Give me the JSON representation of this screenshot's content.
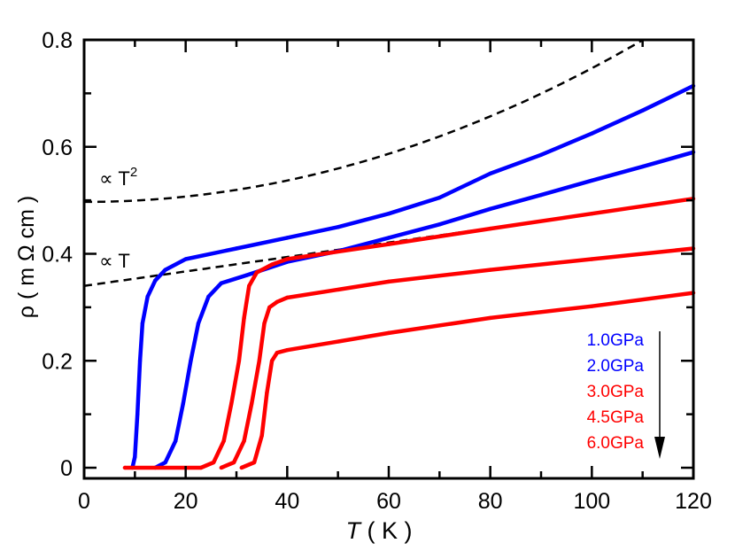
{
  "chart_data": {
    "type": "line",
    "xlabel": {
      "italic": "T",
      "rest": " ( K )"
    },
    "ylabel": "ρ ( m Ω cm )",
    "xlim": [
      0,
      120
    ],
    "ylim": [
      0,
      0.8
    ],
    "xticks": [
      0,
      20,
      40,
      60,
      80,
      100,
      120
    ],
    "yticks": [
      0,
      0.2,
      0.4,
      0.6,
      0.8
    ],
    "ytick_labels": [
      "0",
      "0.2",
      "0.4",
      "0.6",
      "0.8"
    ],
    "grid": false,
    "legend_placement": "bottom-right",
    "legend_arrow": "down",
    "colors": {
      "blue": "#0000ff",
      "red": "#ff0000",
      "fit": "#000000"
    },
    "series": [
      {
        "name": "1.0GPa",
        "color": "#0000ff",
        "points": [
          [
            9.5,
            0
          ],
          [
            10,
            0.02
          ],
          [
            10.5,
            0.1
          ],
          [
            11,
            0.2
          ],
          [
            11.5,
            0.27
          ],
          [
            12.5,
            0.32
          ],
          [
            14,
            0.35
          ],
          [
            16,
            0.37
          ],
          [
            20,
            0.39
          ],
          [
            30,
            0.41
          ],
          [
            40,
            0.43
          ],
          [
            50,
            0.45
          ],
          [
            60,
            0.475
          ],
          [
            70,
            0.505
          ],
          [
            80,
            0.55
          ],
          [
            90,
            0.585
          ],
          [
            100,
            0.625
          ],
          [
            110,
            0.668
          ],
          [
            120,
            0.714
          ]
        ]
      },
      {
        "name": "2.0GPa",
        "color": "#0000ff",
        "points": [
          [
            14,
            0
          ],
          [
            16,
            0.01
          ],
          [
            18,
            0.05
          ],
          [
            19.5,
            0.12
          ],
          [
            21,
            0.2
          ],
          [
            22.5,
            0.27
          ],
          [
            24.5,
            0.32
          ],
          [
            27,
            0.345
          ],
          [
            32,
            0.36
          ],
          [
            40,
            0.385
          ],
          [
            50,
            0.405
          ],
          [
            60,
            0.43
          ],
          [
            70,
            0.455
          ],
          [
            80,
            0.484
          ],
          [
            90,
            0.51
          ],
          [
            100,
            0.537
          ],
          [
            110,
            0.563
          ],
          [
            120,
            0.59
          ]
        ]
      },
      {
        "name": "3.0GPa",
        "color": "#ff0000",
        "points": [
          [
            8,
            0
          ],
          [
            23,
            0
          ],
          [
            25.5,
            0.01
          ],
          [
            27.5,
            0.05
          ],
          [
            29,
            0.12
          ],
          [
            30.5,
            0.2
          ],
          [
            31.5,
            0.28
          ],
          [
            32.5,
            0.34
          ],
          [
            34,
            0.365
          ],
          [
            37,
            0.38
          ],
          [
            40,
            0.39
          ],
          [
            60,
            0.418
          ],
          [
            80,
            0.447
          ],
          [
            100,
            0.475
          ],
          [
            120,
            0.503
          ]
        ]
      },
      {
        "name": "4.5GPa",
        "color": "#ff0000",
        "points": [
          [
            27,
            0
          ],
          [
            29.5,
            0.01
          ],
          [
            31.5,
            0.05
          ],
          [
            33,
            0.12
          ],
          [
            34.5,
            0.2
          ],
          [
            35.5,
            0.27
          ],
          [
            36.5,
            0.3
          ],
          [
            38,
            0.31
          ],
          [
            40,
            0.318
          ],
          [
            60,
            0.348
          ],
          [
            80,
            0.37
          ],
          [
            100,
            0.39
          ],
          [
            120,
            0.41
          ]
        ]
      },
      {
        "name": "6.0GPa",
        "color": "#ff0000",
        "points": [
          [
            31,
            0
          ],
          [
            33.5,
            0.01
          ],
          [
            35,
            0.06
          ],
          [
            36,
            0.14
          ],
          [
            37,
            0.2
          ],
          [
            38,
            0.215
          ],
          [
            40,
            0.22
          ],
          [
            60,
            0.252
          ],
          [
            80,
            0.28
          ],
          [
            100,
            0.302
          ],
          [
            120,
            0.327
          ]
        ]
      }
    ],
    "fits": [
      {
        "label": "∝ T",
        "sup": "2",
        "form": "quadratic",
        "coef": [
          0.497,
          0,
          2.5e-05
        ]
      },
      {
        "label": "∝ T",
        "sup": "",
        "form": "linear",
        "coef": [
          0.34,
          0.00135,
          0
        ]
      }
    ]
  }
}
